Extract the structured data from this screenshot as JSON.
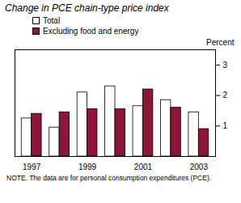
{
  "chart_data": {
    "type": "bar",
    "title": "Change in PCE chain-type price index",
    "y_label": "Percent",
    "note": "NOTE. The data are for personal consumption expenditures (PCE).",
    "categories": [
      "1997",
      null,
      "1999",
      null,
      "2001",
      null,
      "2003"
    ],
    "series": [
      {
        "name": "Total",
        "color": "#ffffff",
        "values": [
          1.25,
          0.95,
          2.1,
          2.3,
          1.65,
          1.85,
          1.45
        ]
      },
      {
        "name": "Excluding food and energy",
        "color": "#8c1538",
        "values": [
          1.4,
          1.45,
          1.55,
          1.55,
          2.2,
          1.6,
          0.9
        ]
      }
    ],
    "ylim": [
      0,
      3.5
    ],
    "yticks": [
      1,
      2,
      3
    ],
    "grid": false,
    "legend": "top-left"
  }
}
